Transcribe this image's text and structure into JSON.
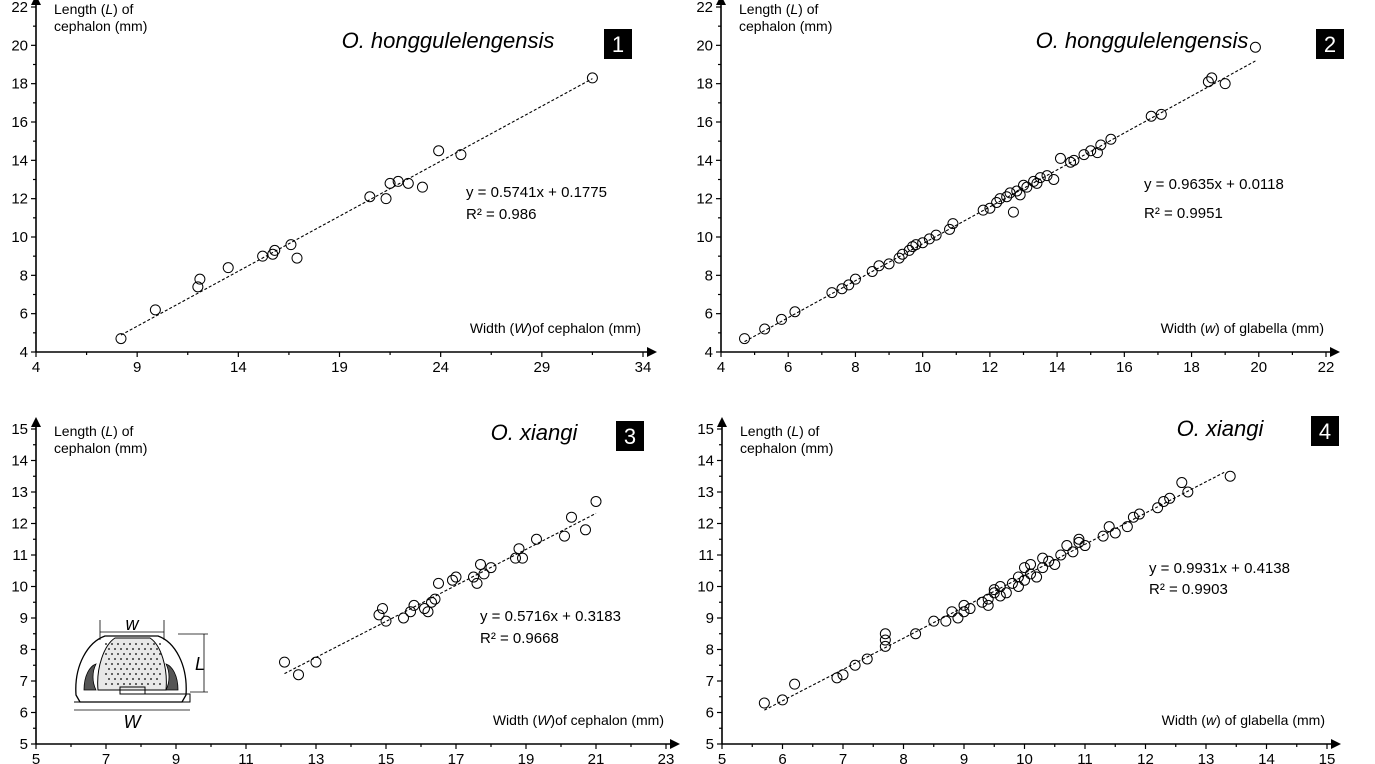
{
  "chart_data": [
    {
      "type": "scatter",
      "panel_number": "1",
      "species": "O. honggulelengensis",
      "ylabel": [
        "Length (",
        "L",
        ") of",
        "cephalon (mm)"
      ],
      "xlabel": [
        "Width (",
        "W",
        ")of cephalon (mm)"
      ],
      "xlim": [
        4,
        34
      ],
      "ylim": [
        4,
        22
      ],
      "xticks": [
        4,
        9,
        14,
        19,
        24,
        29,
        34
      ],
      "yticks": [
        4,
        6,
        8,
        10,
        12,
        14,
        16,
        18,
        20,
        22
      ],
      "equation": "y = 0.5741x + 0.1775",
      "r2": "R² = 0.986",
      "trendline": {
        "slope": 0.5741,
        "intercept": 0.1775,
        "x_range": [
          8.2,
          31.5
        ]
      },
      "points": [
        [
          8.2,
          4.7
        ],
        [
          9.9,
          6.2
        ],
        [
          12.0,
          7.4
        ],
        [
          12.1,
          7.8
        ],
        [
          13.5,
          8.4
        ],
        [
          15.2,
          9.0
        ],
        [
          15.8,
          9.3
        ],
        [
          16.6,
          9.6
        ],
        [
          16.9,
          8.9
        ],
        [
          15.7,
          9.1
        ],
        [
          20.5,
          12.1
        ],
        [
          21.3,
          12.0
        ],
        [
          21.5,
          12.8
        ],
        [
          21.9,
          12.9
        ],
        [
          22.4,
          12.8
        ],
        [
          23.1,
          12.6
        ],
        [
          23.9,
          14.5
        ],
        [
          25.0,
          14.3
        ],
        [
          31.5,
          18.3
        ]
      ]
    },
    {
      "type": "scatter",
      "panel_number": "2",
      "species": "O. honggulelengensis",
      "ylabel": [
        "Length (",
        "L",
        ") of",
        "cephalon (mm)"
      ],
      "xlabel": [
        "Width (",
        "w",
        ") of glabella (mm)"
      ],
      "xlim": [
        4,
        22
      ],
      "ylim": [
        4,
        22
      ],
      "xticks": [
        4,
        6,
        8,
        10,
        12,
        14,
        16,
        18,
        20,
        22
      ],
      "yticks": [
        4,
        6,
        8,
        10,
        12,
        14,
        16,
        18,
        20,
        22
      ],
      "equation": "y = 0.9635x + 0.0118",
      "r2": "R² = 0.9951",
      "trendline": {
        "slope": 0.9635,
        "intercept": 0.0118,
        "x_range": [
          4.7,
          19.9
        ]
      },
      "points": [
        [
          4.7,
          4.7
        ],
        [
          5.3,
          5.2
        ],
        [
          5.8,
          5.7
        ],
        [
          6.2,
          6.1
        ],
        [
          7.3,
          7.1
        ],
        [
          7.6,
          7.3
        ],
        [
          7.8,
          7.5
        ],
        [
          8.0,
          7.8
        ],
        [
          8.5,
          8.2
        ],
        [
          8.7,
          8.5
        ],
        [
          9.0,
          8.6
        ],
        [
          9.3,
          8.9
        ],
        [
          9.4,
          9.1
        ],
        [
          9.6,
          9.3
        ],
        [
          9.7,
          9.5
        ],
        [
          9.8,
          9.6
        ],
        [
          10.0,
          9.7
        ],
        [
          10.2,
          9.9
        ],
        [
          10.4,
          10.1
        ],
        [
          10.8,
          10.4
        ],
        [
          10.9,
          10.7
        ],
        [
          11.8,
          11.4
        ],
        [
          12.0,
          11.5
        ],
        [
          12.2,
          11.8
        ],
        [
          12.3,
          12.0
        ],
        [
          12.5,
          12.1
        ],
        [
          12.6,
          12.3
        ],
        [
          12.7,
          11.3
        ],
        [
          12.8,
          12.4
        ],
        [
          12.9,
          12.2
        ],
        [
          13.0,
          12.7
        ],
        [
          13.1,
          12.6
        ],
        [
          13.3,
          12.9
        ],
        [
          13.4,
          12.8
        ],
        [
          13.5,
          13.1
        ],
        [
          13.7,
          13.2
        ],
        [
          13.9,
          13.0
        ],
        [
          14.1,
          14.1
        ],
        [
          14.4,
          13.9
        ],
        [
          14.5,
          14.0
        ],
        [
          14.8,
          14.3
        ],
        [
          15.0,
          14.5
        ],
        [
          15.2,
          14.4
        ],
        [
          15.3,
          14.8
        ],
        [
          15.6,
          15.1
        ],
        [
          16.8,
          16.3
        ],
        [
          17.1,
          16.4
        ],
        [
          18.5,
          18.1
        ],
        [
          18.6,
          18.3
        ],
        [
          19.0,
          18.0
        ],
        [
          19.9,
          19.9
        ]
      ]
    },
    {
      "type": "scatter",
      "panel_number": "3",
      "species": "O. xiangi",
      "ylabel": [
        "Length (",
        "L",
        ") of",
        "cephalon (mm)"
      ],
      "xlabel": [
        "Width (",
        "W",
        ")of cephalon (mm)"
      ],
      "xlim": [
        5,
        23
      ],
      "ylim": [
        5,
        15
      ],
      "xticks": [
        5,
        7,
        9,
        11,
        13,
        15,
        17,
        19,
        21,
        23
      ],
      "yticks": [
        5,
        6,
        7,
        8,
        9,
        10,
        11,
        12,
        13,
        14,
        15
      ],
      "equation": "y = 0.5716x + 0.3183",
      "r2": "R² = 0.9668",
      "trendline": {
        "slope": 0.5716,
        "intercept": 0.3183,
        "x_range": [
          12.1,
          21.0
        ]
      },
      "inset_labels": {
        "top": "w",
        "bottom": "W",
        "side": "L"
      },
      "points": [
        [
          12.1,
          7.6
        ],
        [
          12.5,
          7.2
        ],
        [
          13.0,
          7.6
        ],
        [
          14.8,
          9.1
        ],
        [
          14.9,
          9.3
        ],
        [
          15.0,
          8.9
        ],
        [
          15.5,
          9.0
        ],
        [
          15.7,
          9.2
        ],
        [
          15.8,
          9.4
        ],
        [
          16.1,
          9.3
        ],
        [
          16.2,
          9.2
        ],
        [
          16.3,
          9.5
        ],
        [
          16.4,
          9.6
        ],
        [
          16.5,
          10.1
        ],
        [
          16.9,
          10.2
        ],
        [
          17.0,
          10.3
        ],
        [
          17.5,
          10.3
        ],
        [
          17.6,
          10.1
        ],
        [
          17.7,
          10.7
        ],
        [
          17.8,
          10.4
        ],
        [
          18.0,
          10.6
        ],
        [
          18.7,
          10.9
        ],
        [
          18.8,
          11.2
        ],
        [
          18.9,
          10.9
        ],
        [
          19.3,
          11.5
        ],
        [
          20.1,
          11.6
        ],
        [
          20.3,
          12.2
        ],
        [
          20.7,
          11.8
        ],
        [
          21.0,
          12.7
        ]
      ]
    },
    {
      "type": "scatter",
      "panel_number": "4",
      "species": "O. xiangi",
      "ylabel": [
        "Length (",
        "L",
        ") of",
        "cephalon (mm)"
      ],
      "xlabel": [
        "Width (",
        "w",
        ") of glabella (mm)"
      ],
      "xlim": [
        5,
        15
      ],
      "ylim": [
        5,
        15
      ],
      "xticks": [
        5,
        6,
        7,
        8,
        9,
        10,
        11,
        12,
        13,
        14,
        15
      ],
      "yticks": [
        5,
        6,
        7,
        8,
        9,
        10,
        11,
        12,
        13,
        14,
        15
      ],
      "equation": "y = 0.9931x + 0.4138",
      "r2": "R² = 0.9903",
      "trendline": {
        "slope": 0.9931,
        "intercept": 0.4138,
        "x_range": [
          5.7,
          13.3
        ]
      },
      "points": [
        [
          5.7,
          6.3
        ],
        [
          6.0,
          6.4
        ],
        [
          6.2,
          6.9
        ],
        [
          6.9,
          7.1
        ],
        [
          7.0,
          7.2
        ],
        [
          7.2,
          7.5
        ],
        [
          7.4,
          7.7
        ],
        [
          7.7,
          8.1
        ],
        [
          7.7,
          8.3
        ],
        [
          7.7,
          8.5
        ],
        [
          8.2,
          8.5
        ],
        [
          8.5,
          8.9
        ],
        [
          8.7,
          8.9
        ],
        [
          8.8,
          9.2
        ],
        [
          8.9,
          9.0
        ],
        [
          9.0,
          9.4
        ],
        [
          9.0,
          9.2
        ],
        [
          9.1,
          9.3
        ],
        [
          9.3,
          9.5
        ],
        [
          9.4,
          9.6
        ],
        [
          9.4,
          9.4
        ],
        [
          9.5,
          9.8
        ],
        [
          9.5,
          9.9
        ],
        [
          9.6,
          9.7
        ],
        [
          9.6,
          10.0
        ],
        [
          9.7,
          9.8
        ],
        [
          9.8,
          10.1
        ],
        [
          9.9,
          10.3
        ],
        [
          9.9,
          10.0
        ],
        [
          10.0,
          10.6
        ],
        [
          10.0,
          10.2
        ],
        [
          10.1,
          10.4
        ],
        [
          10.1,
          10.7
        ],
        [
          10.2,
          10.3
        ],
        [
          10.3,
          10.6
        ],
        [
          10.3,
          10.9
        ],
        [
          10.4,
          10.8
        ],
        [
          10.5,
          10.7
        ],
        [
          10.6,
          11.0
        ],
        [
          10.7,
          11.3
        ],
        [
          10.8,
          11.1
        ],
        [
          10.9,
          11.4
        ],
        [
          10.9,
          11.5
        ],
        [
          11.0,
          11.3
        ],
        [
          11.3,
          11.6
        ],
        [
          11.4,
          11.9
        ],
        [
          11.5,
          11.7
        ],
        [
          11.7,
          11.9
        ],
        [
          11.8,
          12.2
        ],
        [
          11.9,
          12.3
        ],
        [
          12.2,
          12.5
        ],
        [
          12.3,
          12.7
        ],
        [
          12.4,
          12.8
        ],
        [
          12.6,
          13.3
        ],
        [
          12.7,
          13.0
        ],
        [
          13.4,
          13.5
        ]
      ]
    }
  ]
}
